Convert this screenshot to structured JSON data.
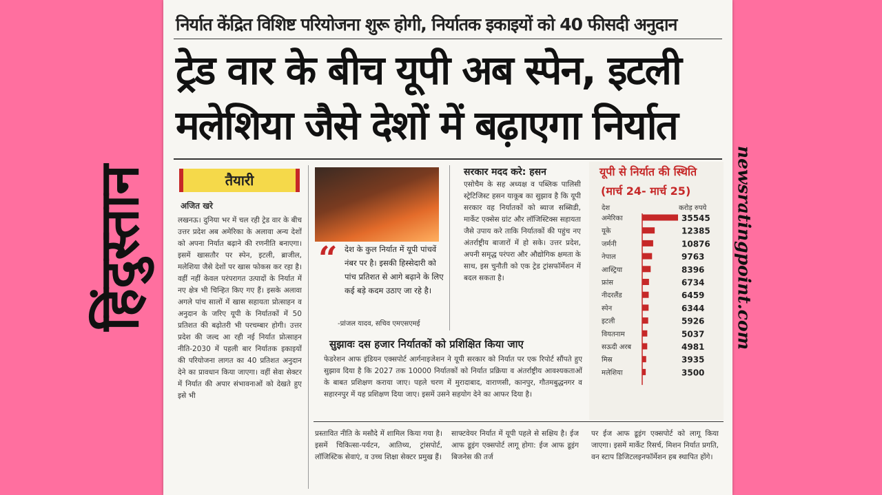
{
  "masthead": "हिंदुस्तान",
  "watermark": "newsratingpoint.com",
  "article": {
    "kicker": "निर्यात केंद्रित विशिष्ट परियोजना शुरू होगी, निर्यातक इकाइयों को 40 फीसदी अनुदान",
    "headline": [
      "ट्रेड वार के बीच यूपी अब स्पेन, इटली",
      "मलेशिया जैसे देशों में बढ़ाएगा निर्यात"
    ],
    "tag": "तैयारी",
    "byline": "अजित खरे",
    "body": "लखनऊ। दुनिया भर में चल रही ट्रेड वार के बीच उत्तर प्रदेश अब अमेरिका के अलावा अन्य देशों को अपना निर्यात बढ़ाने की रणनीति बनाएगा। इसमें खासतौर पर स्पेन, इटली, ब्राजील, मलेशिया जैसे देशों पर खास फोकस कर रहा है। वहीं नहीं केवल परंपरागत उत्पादों के निर्यात में नए क्षेत्र भी चिन्हित किए गए हैं। इसके अलावा अगले पांच सालों में खास सहायता प्रोत्साहन व अनुदान के जरिए यूपी के निर्यातकों में 50 प्रतिशत की बढ़ोतरी भी परचम्बार होगी। उत्तर प्रदेश की जल्द आ रही नई निर्यात प्रोत्साहन नीति-2030 में पहली बार निर्यातक इकाइयों की परियोजना लागत का 40 प्रतिशत अनुदान देने का प्रावधान किया जाएगा। वहीं सेवा सेक्टर में निर्यात की अपार संभावनाओं को देखते हुए इसे भी",
    "quote": "देश के कुल निर्यात में यूपी पांचवें नंबर पर है। इसकी हिस्सेदारी को पांच प्रतिशत से आगे बढ़ाने के लिए कई बड़े कदम उठाए जा रहे है।",
    "quote_attribution": "-प्रांजल यादव, सचिव एमएसएमई",
    "side_heading": "सरकार मदद करे: हसन",
    "side_body": "एसोचैम के सह अध्यक्ष व पब्लिक पालिसी स्ट्रेटिजिस्ट हसन याकूब का सुझाव है कि यूपी सरकार वह निर्यातकों को ब्याज सब्सिडी, मार्केट एक्सेस ग्रांट और लॉजिस्टिक्स सहायता जैसे उपाय करे ताकि निर्यातकों की पहुंच नए अंतर्राष्ट्रीय बाजारों में हो सके। उत्तर प्रदेश, अपनी समृद्ध परंपरा और औद्योगिक क्षमता के साथ, इस चुनौती को एक ट्रेड ट्रांसफॉर्मेशन में बदल सकता है।",
    "suggestion_heading": "सुझावः दस हजार निर्यातकों को प्रशिक्षित किया जाए",
    "suggestion_body": "फेडरेशन आफ इंडियन एक्सपोर्ट आर्गनाइजेशन ने यूपी सरकार को निर्यात पर एक रिपोर्ट सौंपते हुए सुझाव दिया है कि 2027 तक 10000 निर्यातकों को निर्यात प्रक्रिया व अंतर्राष्ट्रीय आवश्यकताओं के बाबत प्रशिक्षण कराया जाए। पहले चरण में मुरादाबाद, वाराणसी, कानपुर, गौतमबुद्धनगर व सहारनपुर में यह प्रशिक्षण दिया जाए। इसमें उसने सहयोग देने का आफर दिया है।",
    "bottom": [
      "प्रस्तावित नीति के मसौदे में शामिल किया गया है। इसमें चिकित्सा-पर्यटन, आतिथ्य, ट्रांसपोर्ट, लॉजिस्टिक सेवाएं, व उच्च शिक्षा सेक्टर प्रमुख हैं।",
      "साफ्टवेयर निर्यात में यूपी पहले से सक्षिय है। ईज आफ डूइंग एक्सपोर्ट लागू होगा: ईज आफ डूइंग बिजनेस की तर्ज",
      "पर ईज आफ डूइंग एक्सपोर्ट को लागू किया जाएगा। इसमें मार्केट रिसर्च, मिशन निर्यात प्रगति, वन स्टाप डिजिटलइनफॉर्मेशन हब स्थापित होंगे।"
    ]
  },
  "export_chart": {
    "type": "bar",
    "title": "यूपी से निर्यात की स्थिति",
    "subtitle": "(मार्च 24- मार्च 25)",
    "category_header": "देश",
    "value_header": "करोड़ रुपये",
    "color": "#c62828",
    "categories": [
      "अमेरिका",
      "यूके",
      "जर्मनी",
      "नेपाल",
      "आस्ट्रिया",
      "फ्रांस",
      "नीदरलैंड",
      "स्पेन",
      "इटली",
      "वियतनाम",
      "सऊदी अरब",
      "मिस्र",
      "मलेशिया"
    ],
    "values": [
      35545,
      12385,
      10876,
      9763,
      8396,
      6734,
      6459,
      6344,
      5926,
      5037,
      4981,
      3935,
      3500
    ]
  }
}
